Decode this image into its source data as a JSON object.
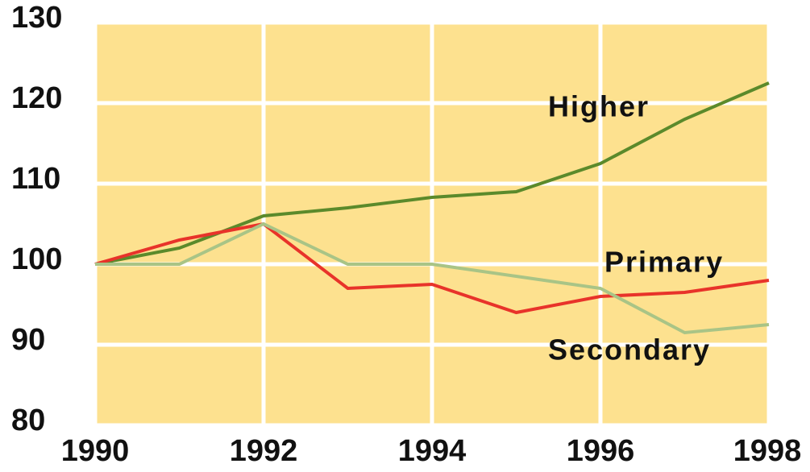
{
  "chart_data": {
    "type": "line",
    "x": [
      1990,
      1991,
      1992,
      1993,
      1994,
      1995,
      1996,
      1997,
      1998
    ],
    "series": [
      {
        "name": "Higher",
        "color": "#5b8a2b",
        "values": [
          100,
          102,
          106,
          107,
          108.3,
          109,
          112.5,
          118,
          122.5
        ]
      },
      {
        "name": "Primary",
        "color": "#e8332a",
        "values": [
          100,
          103,
          105,
          97,
          97.5,
          94,
          96,
          96.5,
          98
        ]
      },
      {
        "name": "Secondary",
        "color": "#a9c486",
        "values": [
          100,
          100,
          105,
          100,
          100,
          98.5,
          97,
          91.5,
          92.5
        ]
      }
    ],
    "xlim": [
      1990,
      1998
    ],
    "xticks": [
      1990,
      1992,
      1994,
      1996,
      1998
    ],
    "ylim": [
      80,
      130
    ],
    "yticks": [
      80,
      90,
      100,
      110,
      120,
      130
    ],
    "grid": true,
    "background": "#fde18f"
  }
}
